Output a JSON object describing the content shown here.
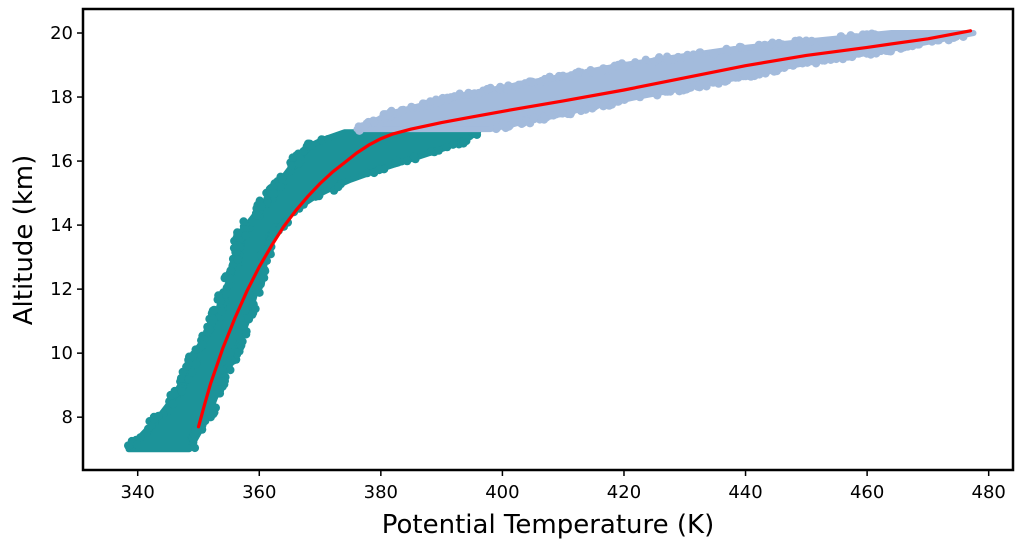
{
  "chart_data": {
    "type": "scatter",
    "xlabel": "Potential Temperature (K)",
    "ylabel": "Altitude (km)",
    "xlim": [
      331,
      484
    ],
    "ylim": [
      6.35,
      20.75
    ],
    "xticks": [
      340,
      360,
      380,
      400,
      420,
      440,
      460,
      480
    ],
    "yticks": [
      8,
      10,
      12,
      14,
      16,
      18,
      20
    ],
    "grid": false,
    "colors": {
      "lower_cloud": "#1c9399",
      "upper_cloud": "#a3bbdc",
      "fit_line": "#ff0000"
    },
    "series": [
      {
        "style": "scatter-band",
        "color": "#1c9399",
        "band": [
          {
            "y": 7.0,
            "xmin": 338.5,
            "xmax": 348.5
          },
          {
            "y": 7.5,
            "xmin": 341.0,
            "xmax": 350.0
          },
          {
            "y": 8.0,
            "xmin": 343.5,
            "xmax": 351.5
          },
          {
            "y": 8.5,
            "xmin": 345.5,
            "xmax": 352.5
          },
          {
            "y": 9.0,
            "xmin": 347.0,
            "xmax": 353.5
          },
          {
            "y": 9.5,
            "xmin": 348.5,
            "xmax": 354.5
          },
          {
            "y": 10.0,
            "xmin": 349.5,
            "xmax": 356.0
          },
          {
            "y": 10.5,
            "xmin": 351.0,
            "xmax": 357.0
          },
          {
            "y": 11.0,
            "xmin": 352.5,
            "xmax": 358.0
          },
          {
            "y": 11.5,
            "xmin": 353.5,
            "xmax": 358.8
          },
          {
            "y": 12.0,
            "xmin": 354.5,
            "xmax": 359.5
          },
          {
            "y": 12.5,
            "xmin": 355.5,
            "xmax": 360.5
          },
          {
            "y": 13.0,
            "xmin": 356.0,
            "xmax": 361.0
          },
          {
            "y": 13.5,
            "xmin": 356.5,
            "xmax": 361.5
          },
          {
            "y": 14.0,
            "xmin": 358.0,
            "xmax": 363.5
          },
          {
            "y": 14.5,
            "xmin": 360.0,
            "xmax": 366.0
          },
          {
            "y": 15.0,
            "xmin": 362.0,
            "xmax": 370.0
          },
          {
            "y": 15.5,
            "xmin": 364.0,
            "xmax": 376.0
          },
          {
            "y": 16.0,
            "xmin": 366.0,
            "xmax": 384.0
          },
          {
            "y": 16.5,
            "xmin": 368.0,
            "xmax": 392.0
          },
          {
            "y": 16.9,
            "xmin": 374.0,
            "xmax": 396.0
          }
        ]
      },
      {
        "style": "scatter-band",
        "color": "#a3bbdc",
        "band": [
          {
            "y": 17.0,
            "xmin": 376.0,
            "xmax": 398.0
          },
          {
            "y": 17.5,
            "xmin": 382.0,
            "xmax": 410.0
          },
          {
            "y": 18.0,
            "xmin": 392.0,
            "xmax": 422.0
          },
          {
            "y": 18.5,
            "xmin": 406.0,
            "xmax": 436.0
          },
          {
            "y": 19.0,
            "xmin": 420.0,
            "xmax": 448.0
          },
          {
            "y": 19.5,
            "xmin": 438.0,
            "xmax": 464.0
          },
          {
            "y": 20.0,
            "xmin": 464.0,
            "xmax": 477.5
          }
        ]
      },
      {
        "style": "line",
        "color": "#ff0000",
        "points": [
          [
            350.0,
            7.7
          ],
          [
            351.0,
            8.4
          ],
          [
            352.0,
            9.05
          ],
          [
            353.0,
            9.6
          ],
          [
            354.0,
            10.15
          ],
          [
            356.0,
            11.1
          ],
          [
            358.0,
            11.95
          ],
          [
            360.0,
            12.7
          ],
          [
            362.0,
            13.35
          ],
          [
            364.0,
            13.95
          ],
          [
            366.0,
            14.45
          ],
          [
            368.0,
            14.9
          ],
          [
            370.0,
            15.3
          ],
          [
            372.0,
            15.65
          ],
          [
            374.0,
            15.95
          ],
          [
            376.0,
            16.25
          ],
          [
            378.0,
            16.5
          ],
          [
            380.0,
            16.7
          ],
          [
            382.0,
            16.85
          ],
          [
            385.0,
            17.0
          ],
          [
            390.0,
            17.2
          ],
          [
            395.0,
            17.38
          ],
          [
            400.0,
            17.55
          ],
          [
            410.0,
            17.88
          ],
          [
            420.0,
            18.22
          ],
          [
            430.0,
            18.6
          ],
          [
            440.0,
            18.98
          ],
          [
            450.0,
            19.3
          ],
          [
            460.0,
            19.55
          ],
          [
            470.0,
            19.82
          ],
          [
            477.0,
            20.07
          ]
        ]
      }
    ]
  }
}
